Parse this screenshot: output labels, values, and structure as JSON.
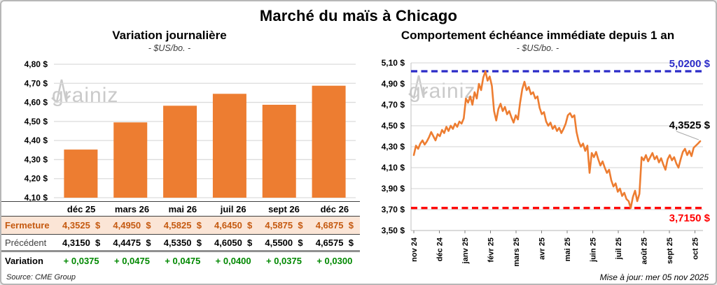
{
  "page": {
    "title": "Marché du maïs à Chicago",
    "source": "Source: CME Group",
    "updated": "Mise à jour: mer 05 nov 2025",
    "watermark_left_part": "grain",
    "watermark_right_part": "iz"
  },
  "colors": {
    "orange": "#ED7D31",
    "blue": "#2B2BC8",
    "red": "#FF0000",
    "green": "#008800",
    "grid": "#DCDCDC",
    "axis": "#BFBFBF",
    "fermeture_bg": "#FBE5D6",
    "fermeture_text": "#C55A11"
  },
  "chart_data": [
    {
      "type": "bar",
      "title": "Variation journalière",
      "subtitle": "- $US/bo. -",
      "categories": [
        "déc 25",
        "mars 26",
        "mai 26",
        "juil 26",
        "sept 26",
        "déc 26"
      ],
      "values": [
        4.3525,
        4.495,
        4.5825,
        4.645,
        4.5875,
        4.6875
      ],
      "ylim": [
        4.1,
        4.8
      ],
      "ytick_labels": [
        "4,80 $",
        "4,70 $",
        "4,60 $",
        "4,50 $",
        "4,40 $",
        "4,30 $",
        "4,20 $",
        "4,10 $"
      ],
      "grid": true,
      "bar_color": "#ED7D31"
    },
    {
      "type": "line",
      "title": "Comportement échéance immédiate depuis 1 an",
      "subtitle": "- $US/bo. -",
      "x_labels": [
        "nov 24",
        "déc 24",
        "janv 25",
        "févr 25",
        "mars 25",
        "avr 25",
        "mai 25",
        "juin 25",
        "juil 25",
        "août 25",
        "sept 25",
        "oct 25"
      ],
      "ylim": [
        3.5,
        5.1
      ],
      "ytick_labels": [
        "5,10 $",
        "4,90 $",
        "4,70 $",
        "4,50 $",
        "4,30 $",
        "4,10 $",
        "3,90 $",
        "3,70 $",
        "3,50 $"
      ],
      "grid": true,
      "series": [
        {
          "name": "échéance immédiate",
          "color": "#ED7D31",
          "values": [
            4.22,
            4.31,
            4.28,
            4.33,
            4.36,
            4.32,
            4.35,
            4.39,
            4.44,
            4.4,
            4.36,
            4.42,
            4.4,
            4.46,
            4.43,
            4.49,
            4.45,
            4.5,
            4.47,
            4.52,
            4.49,
            4.54,
            4.52,
            4.57,
            4.76,
            4.72,
            4.78,
            4.7,
            4.82,
            4.76,
            4.9,
            4.84,
            4.96,
            5.02,
            4.93,
            4.97,
            4.88,
            4.64,
            4.55,
            4.66,
            4.71,
            4.64,
            4.68,
            4.61,
            4.64,
            4.58,
            4.53,
            4.6,
            4.56,
            4.72,
            4.85,
            4.92,
            4.84,
            4.87,
            4.8,
            4.82,
            4.76,
            4.78,
            4.67,
            4.61,
            4.63,
            4.54,
            4.5,
            4.53,
            4.47,
            4.5,
            4.45,
            4.48,
            4.43,
            4.47,
            4.52,
            4.6,
            4.62,
            4.58,
            4.6,
            4.44,
            4.35,
            4.3,
            4.33,
            4.26,
            4.31,
            4.05,
            4.24,
            4.2,
            4.25,
            4.18,
            4.12,
            4.16,
            4.1,
            4.05,
            4.08,
            3.98,
            3.92,
            3.95,
            3.87,
            3.9,
            3.83,
            3.86,
            3.8,
            3.78,
            3.715,
            3.82,
            3.88,
            3.78,
            3.85,
            4.2,
            4.17,
            4.22,
            4.16,
            4.2,
            4.24,
            4.18,
            4.21,
            4.15,
            4.19,
            4.13,
            4.08,
            4.18,
            4.22,
            4.17,
            4.2,
            4.14,
            4.1,
            4.18,
            4.25,
            4.28,
            4.22,
            4.26,
            4.21,
            4.29,
            4.31,
            4.33,
            4.3525
          ]
        }
      ],
      "ref_lines": [
        {
          "label": "5,0200 $",
          "value": 5.02,
          "color": "#2B2BC8",
          "label_side": "above"
        },
        {
          "label": "3,7150 $",
          "value": 3.715,
          "color": "#FF0000",
          "label_side": "below"
        }
      ],
      "last_label": "4,3525 $",
      "last_value": 4.3525
    }
  ],
  "table": {
    "columns": [
      "déc 25",
      "mars 26",
      "mai 26",
      "juil 26",
      "sept 26",
      "déc 26"
    ],
    "rows": [
      {
        "label": "Fermeture",
        "values": [
          "4,3525  $",
          "4,4950  $",
          "4,5825  $",
          "4,6450  $",
          "4,5875  $",
          "4,6875  $"
        ]
      },
      {
        "label": "Précédent",
        "values": [
          "4,3150  $",
          "4,4475  $",
          "4,5350  $",
          "4,6050  $",
          "4,5500  $",
          "4,6575  $"
        ]
      },
      {
        "label": "Variation",
        "values": [
          "+ 0,0375",
          "+ 0,0475",
          "+ 0,0475",
          "+ 0,0400",
          "+ 0,0375",
          "+ 0,0300"
        ]
      }
    ]
  }
}
